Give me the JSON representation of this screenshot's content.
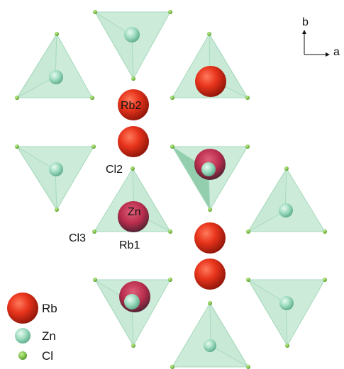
{
  "axes": {
    "b_label": "b",
    "a_label": "a"
  },
  "labels": {
    "rb2": "Rb2",
    "cl2": "Cl2",
    "zn": "Zn",
    "cl3": "Cl3",
    "rb1": "Rb1"
  },
  "legend": {
    "rb": "Rb",
    "zn": "Zn",
    "cl": "Cl"
  },
  "colors": {
    "tetra_fill": "#bfe6cf",
    "tetra_edge": "#a8dcc0",
    "rb": "#e8341c",
    "rb_mixed": "#c8304a",
    "zn": "#8fd6b8",
    "cl": "#7ec24a"
  }
}
